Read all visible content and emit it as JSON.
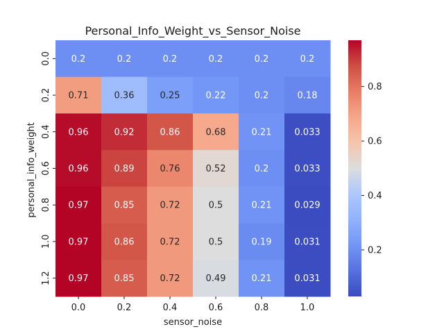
{
  "chart_data": {
    "type": "heatmap",
    "title": "Personal_Info_Weight_vs_Sensor_Noise",
    "xlabel": "sensor_noise",
    "ylabel": "personal_info_weight",
    "x_categories": [
      "0.0",
      "0.2",
      "0.4",
      "0.6",
      "0.8",
      "1.0"
    ],
    "y_categories": [
      "0.0",
      "0.2",
      "0.4",
      "0.6",
      "0.8",
      "1.0",
      "1.2"
    ],
    "values": [
      [
        0.2,
        0.2,
        0.2,
        0.2,
        0.2,
        0.2
      ],
      [
        0.71,
        0.36,
        0.25,
        0.22,
        0.2,
        0.18
      ],
      [
        0.96,
        0.92,
        0.86,
        0.68,
        0.21,
        0.033
      ],
      [
        0.96,
        0.89,
        0.76,
        0.52,
        0.2,
        0.033
      ],
      [
        0.97,
        0.85,
        0.72,
        0.5,
        0.21,
        0.029
      ],
      [
        0.97,
        0.86,
        0.72,
        0.5,
        0.19,
        0.031
      ],
      [
        0.97,
        0.85,
        0.72,
        0.49,
        0.21,
        0.031
      ]
    ],
    "value_labels": [
      [
        "0.2",
        "0.2",
        "0.2",
        "0.2",
        "0.2",
        "0.2"
      ],
      [
        "0.71",
        "0.36",
        "0.25",
        "0.22",
        "0.2",
        "0.18"
      ],
      [
        "0.96",
        "0.92",
        "0.86",
        "0.68",
        "0.21",
        "0.033"
      ],
      [
        "0.96",
        "0.89",
        "0.76",
        "0.52",
        "0.2",
        "0.033"
      ],
      [
        "0.97",
        "0.85",
        "0.72",
        "0.5",
        "0.21",
        "0.029"
      ],
      [
        "0.97",
        "0.86",
        "0.72",
        "0.5",
        "0.19",
        "0.031"
      ],
      [
        "0.97",
        "0.85",
        "0.72",
        "0.49",
        "0.21",
        "0.031"
      ]
    ],
    "colormap": "coolwarm",
    "color_range": [
      0.029,
      0.97
    ],
    "colorbar_ticks": [
      0.2,
      0.4,
      0.6,
      0.8
    ],
    "colorbar_tick_labels": [
      "0.2",
      "0.4",
      "0.6",
      "0.8"
    ],
    "colorbar_position": "right",
    "grid": false
  }
}
